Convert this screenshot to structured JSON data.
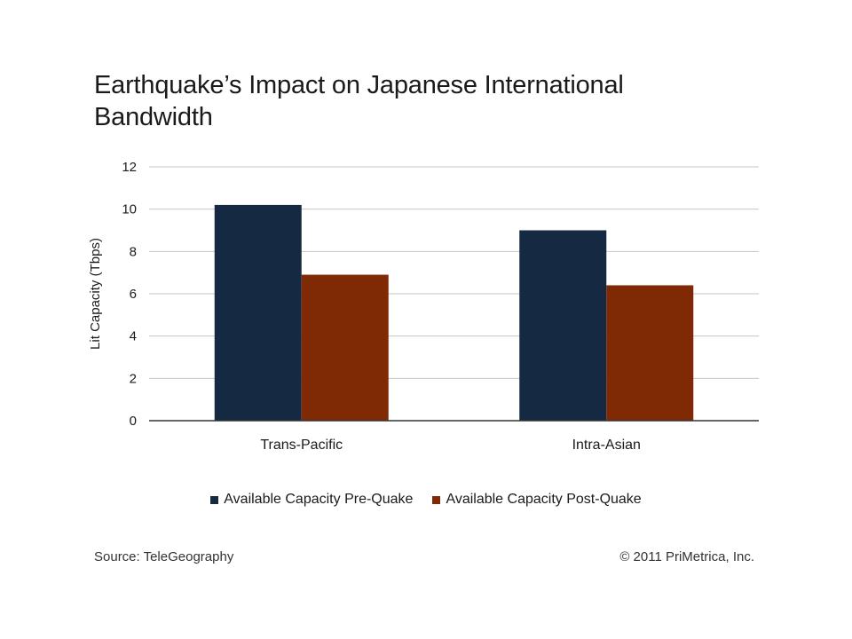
{
  "title": "Earthquake’s Impact on Japanese International Bandwidth",
  "source": "Source: TeleGeography",
  "copyright": "© 2011 PriMetrica, Inc.",
  "colors": {
    "pre_quake": "#152a42",
    "post_quake": "#7f2a05",
    "grid": "#c4c4c4",
    "axis": "#333333"
  },
  "chart_data": {
    "type": "bar",
    "title": "Earthquake’s Impact on Japanese International Bandwidth",
    "xlabel": "",
    "ylabel": "Lit Capacity (Tbps)",
    "categories": [
      "Trans-Pacific",
      "Intra-Asian"
    ],
    "series": [
      {
        "name": "Available Capacity Pre-Quake",
        "values": [
          10.2,
          9.0
        ]
      },
      {
        "name": "Available Capacity Post-Quake",
        "values": [
          6.9,
          6.4
        ]
      }
    ],
    "ylim": [
      0,
      12
    ],
    "yticks": [
      0,
      2,
      4,
      6,
      8,
      10,
      12
    ],
    "grid": true,
    "legend_position": "bottom"
  }
}
